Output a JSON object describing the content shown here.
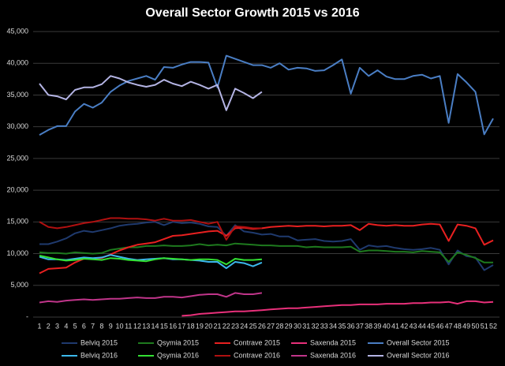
{
  "chart_data": {
    "type": "line",
    "title": "Overall Sector Growth 2015 vs 2016",
    "categories": [
      "1",
      "2",
      "3",
      "4",
      "5",
      "6",
      "7",
      "8",
      "9",
      "10",
      "11",
      "12",
      "13",
      "14",
      "15",
      "16",
      "17",
      "18",
      "19",
      "20",
      "21",
      "22",
      "23",
      "24",
      "25",
      "26",
      "27",
      "28",
      "29",
      "30",
      "31",
      "32",
      "33",
      "34",
      "35",
      "36",
      "37",
      "38",
      "39",
      "40",
      "41",
      "42",
      "43",
      "44",
      "45",
      "46",
      "47",
      "48",
      "49",
      "50",
      "51",
      "52"
    ],
    "ylim": [
      0,
      45000
    ],
    "yticks": [
      {
        "value": 0,
        "label": "-"
      },
      {
        "value": 5000,
        "label": "5,000"
      },
      {
        "value": 10000,
        "label": "10,000"
      },
      {
        "value": 15000,
        "label": "15,000"
      },
      {
        "value": 20000,
        "label": "20,000"
      },
      {
        "value": 25000,
        "label": "25,000"
      },
      {
        "value": 30000,
        "label": "30,000"
      },
      {
        "value": 35000,
        "label": "35,000"
      },
      {
        "value": 40000,
        "label": "40,000"
      },
      {
        "value": 45000,
        "label": "45,000"
      }
    ],
    "grid": true,
    "legend": "bottom",
    "series": [
      {
        "name": "Belviq 2015",
        "color": "#1f3a6e",
        "values": [
          11500,
          11500,
          11900,
          12400,
          13200,
          13600,
          13400,
          13700,
          14000,
          14400,
          14600,
          14700,
          14900,
          15000,
          14500,
          15000,
          14800,
          14900,
          14700,
          14300,
          14200,
          12800,
          14500,
          13500,
          13300,
          13000,
          13100,
          12700,
          12700,
          12100,
          12200,
          12300,
          12000,
          11900,
          12000,
          12300,
          10600,
          11300,
          11100,
          11200,
          10900,
          10700,
          10600,
          10700,
          10900,
          10600,
          8300,
          10500,
          9600,
          9400,
          7400,
          8200
        ]
      },
      {
        "name": "Qsymia 2015",
        "color": "#1e7a1e",
        "values": [
          10200,
          10100,
          10100,
          10000,
          10200,
          10100,
          10000,
          10100,
          10600,
          10800,
          11000,
          11000,
          11200,
          11200,
          11300,
          11200,
          11200,
          11300,
          11500,
          11300,
          11400,
          11300,
          11600,
          11500,
          11400,
          11300,
          11300,
          11200,
          11200,
          11200,
          11000,
          11100,
          11000,
          11000,
          11000,
          11100,
          10300,
          10500,
          10500,
          10400,
          10300,
          10300,
          10200,
          10400,
          10300,
          10200,
          8700,
          10200,
          9800,
          9300,
          8600,
          8600
        ]
      },
      {
        "name": "Contrave 2015",
        "color": "#e82020",
        "values": [
          6900,
          7600,
          7700,
          7800,
          8600,
          9200,
          9200,
          9300,
          9900,
          10500,
          11000,
          11400,
          11600,
          11800,
          12300,
          12800,
          12900,
          13100,
          13300,
          13500,
          13600,
          12800,
          14000,
          14100,
          13900,
          14000,
          14200,
          14300,
          14400,
          14300,
          14400,
          14400,
          14300,
          14400,
          14400,
          14500,
          13700,
          14700,
          14500,
          14400,
          14500,
          14400,
          14400,
          14600,
          14700,
          14600,
          12000,
          14600,
          14400,
          14000,
          11400,
          12100
        ]
      },
      {
        "name": "Saxenda 2015",
        "color": "#e8307a",
        "values": [
          null,
          null,
          null,
          null,
          null,
          null,
          null,
          null,
          null,
          null,
          null,
          null,
          null,
          null,
          null,
          null,
          200,
          300,
          500,
          600,
          700,
          800,
          900,
          900,
          1000,
          1100,
          1200,
          1300,
          1400,
          1400,
          1500,
          1600,
          1700,
          1800,
          1900,
          1900,
          2000,
          2000,
          2000,
          2100,
          2100,
          2100,
          2200,
          2200,
          2300,
          2300,
          2400,
          2100,
          2500,
          2500,
          2300,
          2400
        ]
      },
      {
        "name": "Overall Sector 2015",
        "color": "#4a7ec4",
        "values": [
          28700,
          29500,
          30100,
          30100,
          32400,
          33600,
          33000,
          33800,
          35500,
          36500,
          37200,
          37600,
          38000,
          37400,
          39400,
          39300,
          39800,
          40200,
          40200,
          40100,
          36200,
          41200,
          40700,
          40200,
          39700,
          39700,
          39300,
          40000,
          39000,
          39300,
          39200,
          38800,
          38900,
          39700,
          40600,
          35200,
          39300,
          38000,
          38900,
          37900,
          37500,
          37500,
          38000,
          38200,
          37600,
          38000,
          30600,
          38300,
          37000,
          35500,
          28800,
          31300
        ]
      },
      {
        "name": "Belviq 2016",
        "color": "#3cb8ec",
        "values": [
          9500,
          9100,
          9100,
          9000,
          9200,
          9400,
          9300,
          9400,
          9800,
          9500,
          9200,
          9000,
          9100,
          9200,
          9300,
          9100,
          9100,
          9000,
          8900,
          8700,
          8700,
          7700,
          8700,
          8500,
          8000,
          8600,
          null,
          null,
          null,
          null,
          null,
          null,
          null,
          null,
          null,
          null,
          null,
          null,
          null,
          null,
          null,
          null,
          null,
          null,
          null,
          null,
          null,
          null,
          null,
          null,
          null,
          null
        ]
      },
      {
        "name": "Qsymia 2016",
        "color": "#33e033",
        "values": [
          9700,
          9400,
          9100,
          8900,
          9000,
          9200,
          9100,
          9000,
          9300,
          9200,
          9000,
          8900,
          8800,
          9100,
          9300,
          9200,
          9100,
          9000,
          9100,
          9100,
          9000,
          8300,
          9200,
          9000,
          9000,
          9100,
          null,
          null,
          null,
          null,
          null,
          null,
          null,
          null,
          null,
          null,
          null,
          null,
          null,
          null,
          null,
          null,
          null,
          null,
          null,
          null,
          null,
          null,
          null,
          null,
          null,
          null
        ]
      },
      {
        "name": "Contrave 2016",
        "color": "#b01010",
        "values": [
          15000,
          14200,
          14000,
          14200,
          14500,
          14800,
          15000,
          15300,
          15600,
          15600,
          15500,
          15500,
          15400,
          15200,
          15500,
          15200,
          15200,
          15300,
          15000,
          14700,
          15000,
          12200,
          14300,
          14200,
          14000,
          14000,
          null,
          null,
          null,
          null,
          null,
          null,
          null,
          null,
          null,
          null,
          null,
          null,
          null,
          null,
          null,
          null,
          null,
          null,
          null,
          null,
          null,
          null,
          null,
          null,
          null,
          null
        ]
      },
      {
        "name": "Saxenda 2016",
        "color": "#c0358a",
        "values": [
          2300,
          2500,
          2400,
          2600,
          2700,
          2800,
          2700,
          2800,
          2900,
          2900,
          3000,
          3100,
          3000,
          3000,
          3200,
          3200,
          3100,
          3300,
          3500,
          3600,
          3600,
          3200,
          3800,
          3600,
          3600,
          3800,
          null,
          null,
          null,
          null,
          null,
          null,
          null,
          null,
          null,
          null,
          null,
          null,
          null,
          null,
          null,
          null,
          null,
          null,
          null,
          null,
          null,
          null,
          null,
          null,
          null,
          null
        ]
      },
      {
        "name": "Overall Sector 2016",
        "color": "#b4b4e4",
        "values": [
          36800,
          35000,
          34800,
          34300,
          35800,
          36200,
          36200,
          36700,
          38000,
          37600,
          37000,
          36600,
          36300,
          36600,
          37400,
          36800,
          36400,
          37100,
          36600,
          36000,
          36600,
          32600,
          36000,
          35300,
          34500,
          35500,
          null,
          null,
          null,
          null,
          null,
          null,
          null,
          null,
          null,
          null,
          null,
          null,
          null,
          null,
          null,
          null,
          null,
          null,
          null,
          null,
          null,
          null,
          null,
          null,
          null,
          null
        ]
      }
    ]
  }
}
